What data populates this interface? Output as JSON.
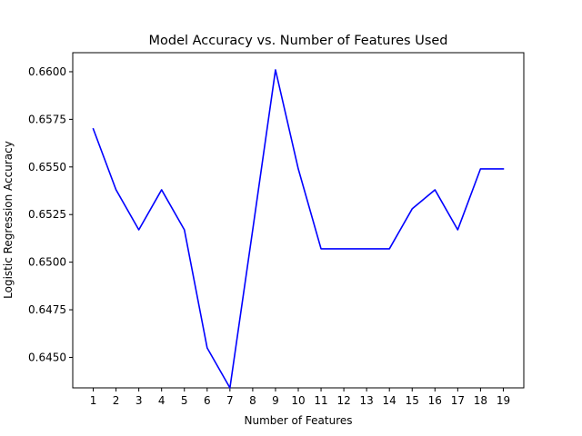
{
  "chart_data": {
    "type": "line",
    "title": "Model Accuracy vs. Number of Features Used",
    "xlabel": "Number of Features",
    "ylabel": "Logistic Regression Accuracy",
    "x": [
      1,
      2,
      3,
      4,
      5,
      6,
      7,
      8,
      9,
      10,
      11,
      12,
      13,
      14,
      15,
      16,
      17,
      18,
      19
    ],
    "series": [
      {
        "values": [
          0.657,
          0.6538,
          0.6517,
          0.6538,
          0.6517,
          0.6455,
          0.6434,
          0.6517,
          0.6601,
          0.6549,
          0.6507,
          0.6507,
          0.6507,
          0.6507,
          0.6528,
          0.6538,
          0.6517,
          0.6549,
          0.6549
        ],
        "color": "#0000ff"
      }
    ],
    "xlim": [
      0.1,
      19.9
    ],
    "ylim": [
      0.6434,
      0.661
    ],
    "xticks": [
      "1",
      "2",
      "3",
      "4",
      "5",
      "6",
      "7",
      "8",
      "9",
      "10",
      "11",
      "12",
      "13",
      "14",
      "15",
      "16",
      "17",
      "18",
      "19"
    ],
    "yticks": [
      "0.6450",
      "0.6475",
      "0.6500",
      "0.6525",
      "0.6550",
      "0.6575",
      "0.6600"
    ],
    "grid": false,
    "legend": "none"
  }
}
